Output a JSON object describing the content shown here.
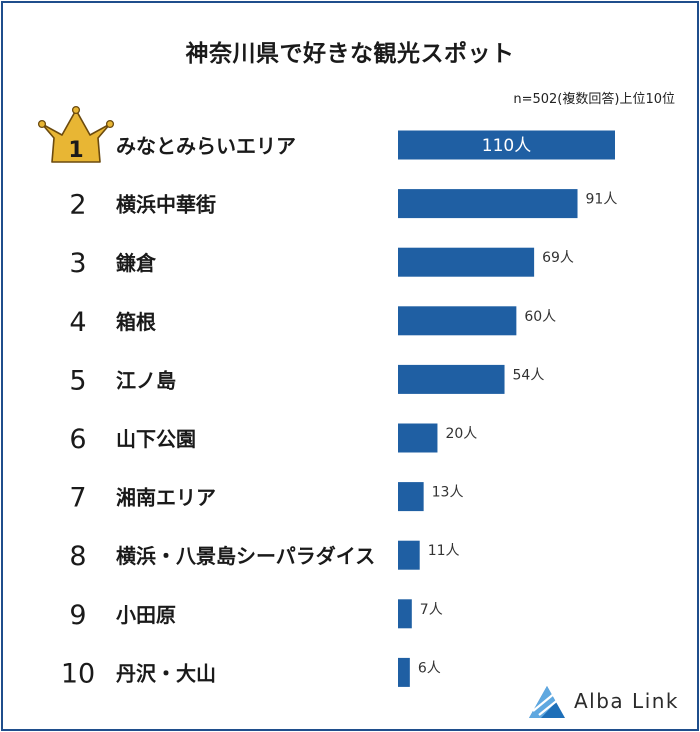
{
  "title": "神奈川県で好きな観光スポット",
  "note": "n=502(複数回答)上位10位",
  "brand": "Alba Link",
  "colors": {
    "bar": "#1f5fa3",
    "frame": "#1f4e8c",
    "crown": "#e8b634",
    "crown_stroke": "#6b4a0e",
    "logo": "#1e6fb8"
  },
  "chart_data": {
    "type": "bar",
    "orientation": "horizontal",
    "title": "神奈川県で好きな観光スポット",
    "unit": "人",
    "ranks": [
      "1",
      "2",
      "3",
      "4",
      "5",
      "6",
      "7",
      "8",
      "9",
      "10"
    ],
    "categories": [
      "みなとみらいエリア",
      "横浜中華街",
      "鎌倉",
      "箱根",
      "江ノ島",
      "山下公園",
      "湘南エリア",
      "横浜・八景島シーパラダイス",
      "小田原",
      "丹沢・大山"
    ],
    "values": [
      110,
      91,
      69,
      60,
      54,
      20,
      13,
      11,
      7,
      6
    ],
    "value_labels": [
      "110人",
      "91人",
      "69人",
      "60人",
      "54人",
      "20人",
      "13人",
      "11人",
      "7人",
      "6人"
    ],
    "xlim": [
      0,
      110
    ]
  }
}
